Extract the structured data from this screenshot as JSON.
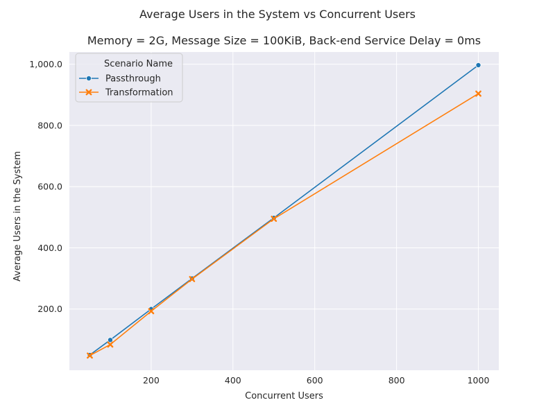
{
  "figure": {
    "suptitle": "Average Users in the System vs Concurrent Users"
  },
  "chart_data": {
    "type": "line",
    "title": "Memory = 2G, Message Size = 100KiB, Back-end Service Delay = 0ms",
    "xlabel": "Concurrent Users",
    "ylabel": "Average Users in the System",
    "xlim": [
      0,
      1050
    ],
    "ylim": [
      0,
      1040
    ],
    "xticks": [
      200,
      400,
      600,
      800,
      1000
    ],
    "xtick_labels": [
      "200",
      "400",
      "600",
      "800",
      "1000"
    ],
    "yticks": [
      200,
      400,
      600,
      800,
      1000
    ],
    "ytick_labels": [
      "200.0",
      "400.0",
      "600.0",
      "800.0",
      "1,000.0"
    ],
    "grid": true,
    "legend": {
      "title": "Scenario Name",
      "placement": "top-left"
    },
    "series": [
      {
        "name": "Passthrough",
        "color": "#1f77b4",
        "marker": "circle",
        "x": [
          50,
          100,
          200,
          300,
          500,
          1000
        ],
        "y": [
          50,
          99,
          200,
          300,
          498,
          997
        ]
      },
      {
        "name": "Transformation",
        "color": "#ff7f0e",
        "marker": "x",
        "x": [
          50,
          100,
          200,
          300,
          500,
          1000
        ],
        "y": [
          48,
          84,
          193,
          298,
          495,
          904
        ]
      }
    ]
  }
}
